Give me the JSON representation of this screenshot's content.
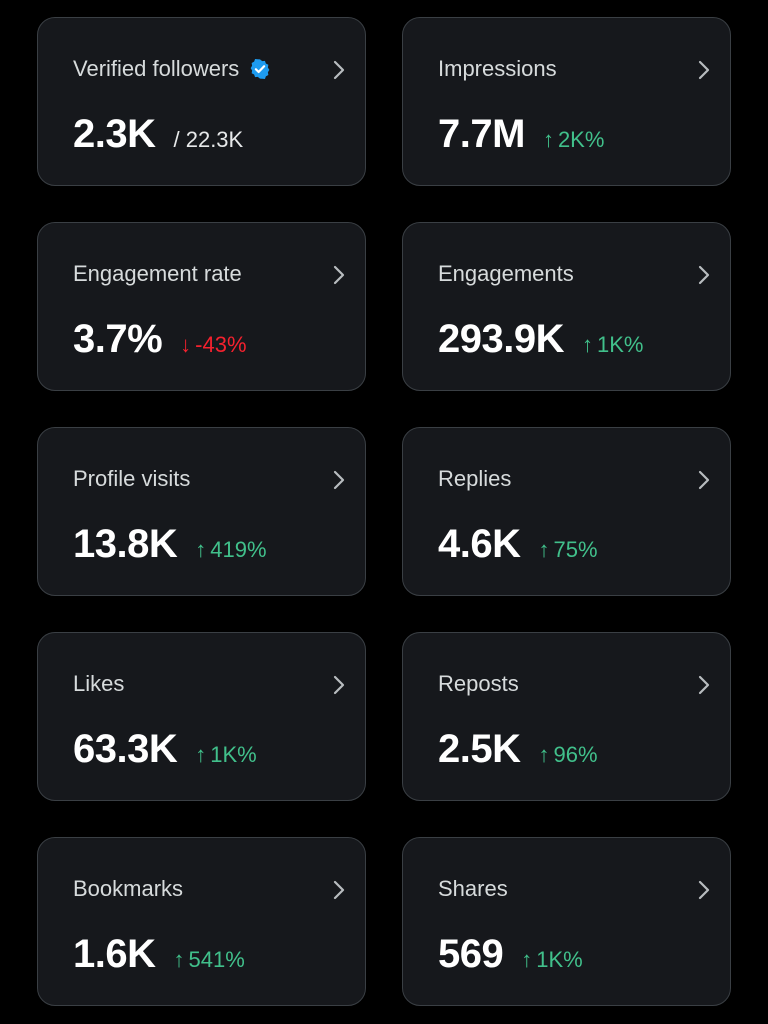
{
  "colors": {
    "background": "#000000",
    "card": "#16181c",
    "border": "#3a3f44",
    "up": "#41c08b",
    "down": "#f4212e",
    "verified": "#1d9bf0"
  },
  "cards": [
    {
      "label": "Verified followers",
      "value": "2.3K",
      "sub": "/ 22.3K",
      "verified_icon": "verified-badge-icon"
    },
    {
      "label": "Impressions",
      "value": "7.7M",
      "delta_arrow": "↑",
      "delta": "2K%"
    },
    {
      "label": "Engagement rate",
      "value": "3.7%",
      "delta_arrow": "↓",
      "delta": "-43%"
    },
    {
      "label": "Engagements",
      "value": "293.9K",
      "delta_arrow": "↑",
      "delta": "1K%"
    },
    {
      "label": "Profile visits",
      "value": "13.8K",
      "delta_arrow": "↑",
      "delta": "419%"
    },
    {
      "label": "Replies",
      "value": "4.6K",
      "delta_arrow": "↑",
      "delta": "75%"
    },
    {
      "label": "Likes",
      "value": "63.3K",
      "delta_arrow": "↑",
      "delta": "1K%"
    },
    {
      "label": "Reposts",
      "value": "2.5K",
      "delta_arrow": "↑",
      "delta": "96%"
    },
    {
      "label": "Bookmarks",
      "value": "1.6K",
      "delta_arrow": "↑",
      "delta": "541%"
    },
    {
      "label": "Shares",
      "value": "569",
      "delta_arrow": "↑",
      "delta": "1K%"
    }
  ]
}
